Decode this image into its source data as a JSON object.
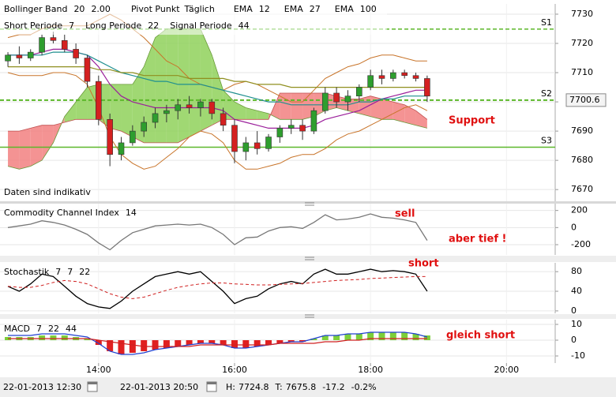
{
  "chart_data": [
    {
      "type": "candlestick",
      "x": [
        760,
        770,
        780,
        790,
        800,
        810,
        820,
        830,
        840,
        850,
        860,
        870,
        880,
        890,
        900,
        910,
        920,
        930,
        940,
        950,
        960,
        970,
        980,
        990,
        1000,
        1010,
        1020,
        1030,
        1040,
        1050,
        1060,
        1070,
        1080,
        1090,
        1100,
        1110,
        1120,
        1130
      ],
      "xlim": [
        753,
        1243
      ],
      "xticks": [
        {
          "value": 840,
          "label": "14:00"
        },
        {
          "value": 960,
          "label": "16:00"
        },
        {
          "value": 1080,
          "label": "18:00"
        },
        {
          "value": 1200,
          "label": "20:00"
        }
      ],
      "ylim": [
        7666,
        7733.5
      ],
      "yticks": [
        7670,
        7680,
        7690,
        7700,
        7710,
        7720,
        7730
      ],
      "open": [
        7714,
        7716,
        7715,
        7717,
        7722,
        7721,
        7718,
        7715,
        7707,
        7694,
        7682,
        7686,
        7690,
        7693,
        7696,
        7697,
        7699,
        7698,
        7700,
        7696,
        7692,
        7683,
        7686,
        7684,
        7688,
        7691,
        7692,
        7690,
        7697,
        7703,
        7700,
        7702,
        7705,
        7709,
        7708,
        7710,
        7709,
        7708
      ],
      "high": [
        7717,
        7719,
        7718,
        7723,
        7724,
        7723,
        7720,
        7716,
        7709,
        7696,
        7688,
        7692,
        7695,
        7698,
        7699,
        7701,
        7702,
        7701,
        7701,
        7698,
        7694,
        7688,
        7690,
        7689,
        7692,
        7694,
        7694,
        7698,
        7705,
        7705,
        7704,
        7706,
        7711,
        7711,
        7711,
        7711,
        7710,
        7709
      ],
      "low": [
        7712,
        7713,
        7714,
        7716,
        7720,
        7717,
        7713,
        7705,
        7692,
        7678,
        7680,
        7685,
        7688,
        7691,
        7693,
        7694,
        7696,
        7695,
        7694,
        7690,
        7679,
        7680,
        7682,
        7683,
        7686,
        7689,
        7687,
        7689,
        7696,
        7698,
        7697,
        7700,
        7704,
        7706,
        7707,
        7708,
        7707,
        7700
      ],
      "close": [
        7716,
        7715,
        7717,
        7722,
        7721,
        7718,
        7715,
        7707,
        7694,
        7682,
        7686,
        7690,
        7693,
        7696,
        7697,
        7699,
        7698,
        7700,
        7696,
        7692,
        7683,
        7686,
        7684,
        7688,
        7691,
        7692,
        7690,
        7697,
        7703,
        7700,
        7702,
        7705,
        7709,
        7708,
        7710,
        7709,
        7708,
        7702
      ],
      "up_color": "#2e9e2e",
      "down_color": "#d42020",
      "bollinger": {
        "name": "Bollinger Band",
        "params": [
          20,
          {
            "value": 2,
            "label": "2.00"
          }
        ],
        "color": "#c8742a",
        "upper": [
          7722,
          7723,
          7723,
          7725,
          7726,
          7726,
          7726,
          7726,
          7728,
          7730,
          7728,
          7725,
          7722,
          7718,
          7714,
          7712,
          7708,
          7706,
          7705,
          7704,
          7706,
          7707,
          7706,
          7704,
          7702,
          7700,
          7700,
          7704,
          7708,
          7710,
          7712,
          7713,
          7715,
          7716,
          7716,
          7715,
          7714,
          7714
        ],
        "lower": [
          7710,
          7709,
          7709,
          7709,
          7710,
          7710,
          7709,
          7706,
          7698,
          7688,
          7682,
          7679,
          7677,
          7678,
          7681,
          7684,
          7688,
          7690,
          7689,
          7686,
          7680,
          7677,
          7677,
          7678,
          7679,
          7681,
          7682,
          7682,
          7684,
          7687,
          7689,
          7690,
          7692,
          7694,
          7696,
          7698,
          7699,
          7697
        ]
      },
      "pivot": {
        "name": "Pivot Punkt",
        "period": "Täglich",
        "color": "#5cb82a",
        "levels": [
          {
            "label": "S1",
            "value": 7724.9,
            "dashed": true
          },
          {
            "label": "S2",
            "value": 7700.6,
            "dashed": true
          },
          {
            "label": "S3",
            "value": 7684.5,
            "dashed": false
          }
        ]
      },
      "series": [
        {
          "name": "EMA",
          "period": 12,
          "color": "#9b1f9b",
          "values": [
            7716,
            7716,
            7716,
            7717,
            7718,
            7718,
            7717,
            7716,
            7712,
            7706,
            7702,
            7700,
            7699,
            7698,
            7698,
            7698,
            7698,
            7698,
            7698,
            7697,
            7694,
            7693,
            7692,
            7691,
            7691,
            7691,
            7691,
            7692,
            7694,
            7695,
            7696,
            7697,
            7699,
            7701,
            7702,
            7703,
            7704,
            7704
          ]
        },
        {
          "name": "EMA",
          "period": 27,
          "color": "#1f8f8f",
          "values": [
            7716,
            7716,
            7716,
            7716,
            7717,
            7717,
            7717,
            7716,
            7714,
            7712,
            7710,
            7709,
            7708,
            7707,
            7707,
            7706,
            7706,
            7706,
            7705,
            7704,
            7703,
            7702,
            7701,
            7700,
            7700,
            7699,
            7699,
            7699,
            7699,
            7699,
            7699,
            7700,
            7700,
            7701,
            7701,
            7702,
            7702,
            7702
          ]
        },
        {
          "name": "EMA",
          "period": 100,
          "color": "#8f8f1f",
          "values": [
            7712,
            7712,
            7712,
            7712,
            7712,
            7712,
            7712,
            7712,
            7711,
            7711,
            7710,
            7710,
            7709,
            7709,
            7709,
            7709,
            7708,
            7708,
            7708,
            7708,
            7707,
            7707,
            7706,
            7706,
            7706,
            7705,
            7705,
            7705,
            7705,
            7705,
            7705,
            7705,
            7705,
            7705,
            7705,
            7705,
            7705,
            7705
          ]
        }
      ],
      "cloud": {
        "up_color": "#8fd15a",
        "down_color": "#f28080",
        "span_a": [
          7678,
          7677,
          7678,
          7680,
          7686,
          7695,
          7700,
          7705,
          7706,
          7706,
          7706,
          7706,
          7712,
          7722,
          7725,
          7725,
          7725,
          7725,
          7716,
          7704,
          7700,
          7698,
          7697,
          7696,
          7694,
          7694,
          7694,
          7695,
          7697,
          7698,
          7697,
          7696,
          7695,
          7694,
          7694,
          7693,
          7692,
          7691
        ],
        "span_b": [
          7690,
          7690,
          7691,
          7692,
          7692,
          7693,
          7694,
          7694,
          7694,
          7691,
          7690,
          7688,
          7686,
          7686,
          7686,
          7686,
          7688,
          7690,
          7692,
          7694,
          7694,
          7694,
          7694,
          7694,
          7703,
          7703,
          7703,
          7703,
          7703,
          7702,
          7701,
          7701,
          7702,
          7701,
          7700,
          7699,
          7697,
          7694
        ]
      },
      "periods": [
        {
          "name": "Short Periode",
          "value": 7
        },
        {
          "name": "Long Periode",
          "value": 22
        },
        {
          "name": "Signal Periode",
          "value": 44
        }
      ],
      "last_price": 7700.6,
      "note": "Daten sind indikativ",
      "annotations": [
        "Support"
      ]
    },
    {
      "type": "line",
      "title": "Commodity Channel Index",
      "params": [
        14
      ],
      "param_colors": [
        "#000000"
      ],
      "ylim": [
        -320,
        280
      ],
      "yticks": [
        -200,
        0,
        200
      ],
      "series": [
        {
          "color": "#777777",
          "values": [
            0,
            20,
            40,
            80,
            60,
            30,
            -20,
            -80,
            -180,
            -260,
            -150,
            -60,
            -20,
            20,
            30,
            40,
            30,
            40,
            0,
            -80,
            -200,
            -120,
            -110,
            -40,
            0,
            10,
            -10,
            60,
            150,
            90,
            100,
            120,
            160,
            120,
            110,
            90,
            60,
            -150
          ]
        }
      ],
      "annotations": [
        "sell",
        "aber tief !"
      ]
    },
    {
      "type": "line",
      "title": "Stochastik",
      "params": [
        7,
        7,
        22
      ],
      "param_colors": [
        "#000000",
        "#000000",
        "#d02020"
      ],
      "ylim": [
        -5,
        98
      ],
      "yticks": [
        0,
        40,
        80
      ],
      "series": [
        {
          "color": "#000000",
          "values": [
            50,
            40,
            55,
            75,
            70,
            50,
            30,
            15,
            8,
            5,
            20,
            40,
            55,
            70,
            75,
            80,
            75,
            80,
            60,
            40,
            15,
            25,
            30,
            45,
            55,
            60,
            55,
            75,
            85,
            75,
            75,
            80,
            85,
            80,
            82,
            80,
            75,
            40
          ]
        },
        {
          "color": "#d02020",
          "dashed": true,
          "values": [
            50,
            48,
            48,
            52,
            58,
            62,
            60,
            55,
            45,
            35,
            28,
            25,
            28,
            35,
            42,
            48,
            52,
            55,
            57,
            57,
            55,
            54,
            53,
            53,
            54,
            55,
            56,
            58,
            60,
            62,
            63,
            64,
            66,
            67,
            68,
            69,
            70,
            70
          ]
        }
      ],
      "annotations": [
        "short"
      ]
    },
    {
      "type": "macd",
      "title": "MACD",
      "params": [
        7,
        22,
        44
      ],
      "param_colors": [
        "#c02020",
        "#c02020",
        "#c02020"
      ],
      "ylim": [
        -14.5,
        13
      ],
      "yticks": [
        -10,
        0,
        10
      ],
      "histogram": {
        "pos_color": "#7ccf3a",
        "neg_color": "#e02020",
        "values": [
          2,
          2,
          2,
          3,
          3,
          3,
          2,
          1,
          -3,
          -7,
          -9,
          -8,
          -7,
          -6,
          -5,
          -4,
          -3,
          -2,
          -2,
          -3,
          -5,
          -5,
          -4,
          -3,
          -2,
          -1,
          -1,
          1,
          3,
          3,
          4,
          4,
          5,
          5,
          5,
          5,
          4,
          3
        ]
      },
      "series": [
        {
          "color": "#2040d0",
          "values": [
            3,
            3,
            3,
            4,
            4,
            4,
            3,
            2,
            -2,
            -7,
            -9,
            -9,
            -8,
            -6,
            -5,
            -4,
            -3,
            -2,
            -2,
            -3,
            -5,
            -5,
            -4,
            -3,
            -2,
            -1,
            -1,
            1,
            3,
            3,
            4,
            4,
            5,
            5,
            5,
            5,
            4,
            2
          ]
        },
        {
          "color": "#d02020",
          "values": [
            1,
            1,
            1,
            1,
            1,
            1,
            1,
            1,
            0,
            -1,
            -2,
            -3,
            -4,
            -4,
            -4,
            -4,
            -4,
            -3,
            -3,
            -3,
            -3,
            -3,
            -3,
            -3,
            -2,
            -2,
            -2,
            -2,
            -1,
            -1,
            0,
            0,
            1,
            1,
            1,
            1,
            1,
            1
          ]
        }
      ],
      "annotations": [
        "gleich short"
      ]
    }
  ],
  "status": {
    "from": "22-01-2013 12:30",
    "to": "22-01-2013 20:50",
    "high_label": "H:",
    "high": 7724.8,
    "low_label": "T:",
    "low": 7675.8,
    "change": -17.2,
    "change_pct": {
      "value": -0.2,
      "label": "-0.2%"
    }
  }
}
